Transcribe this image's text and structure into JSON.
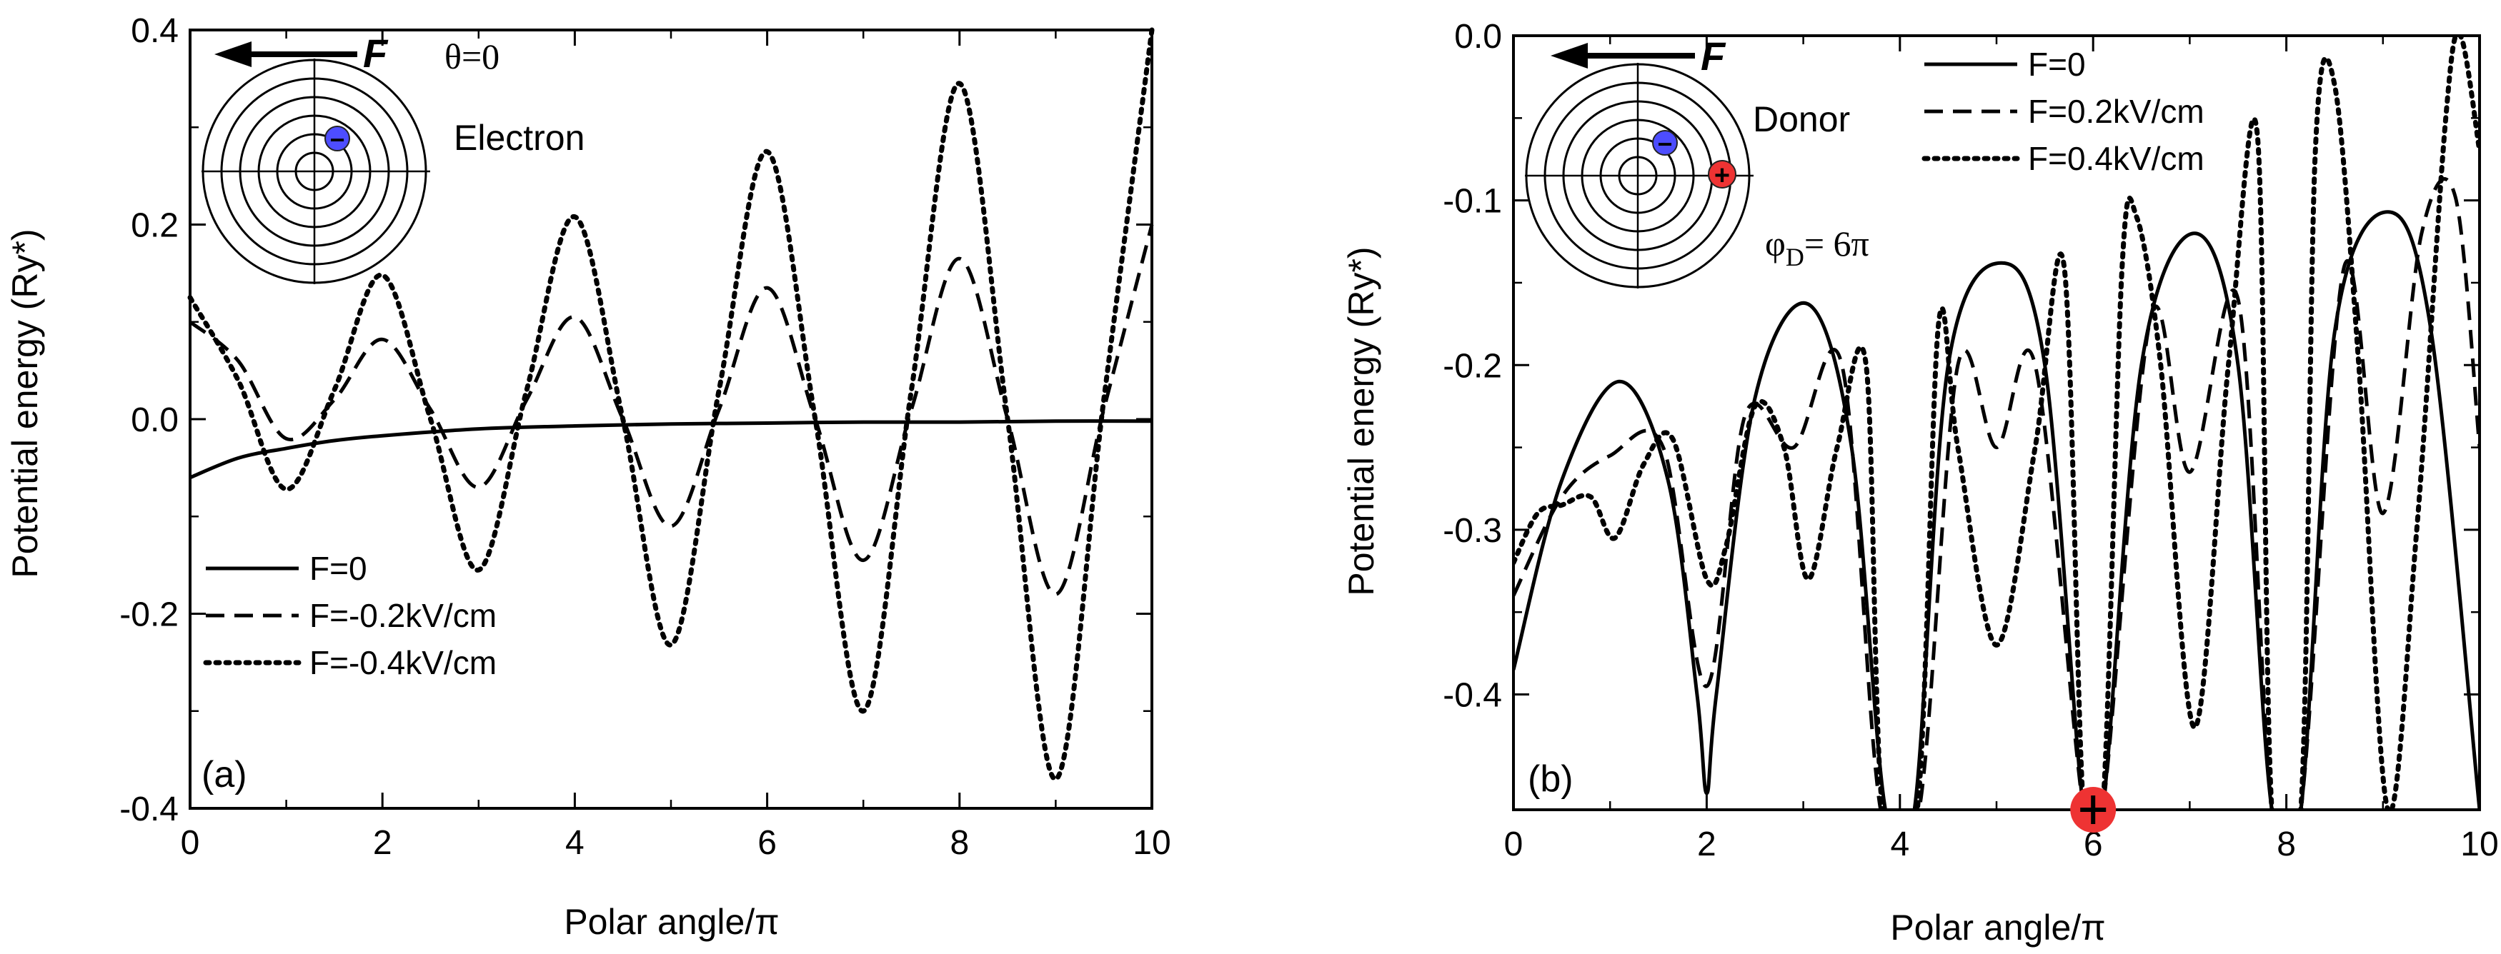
{
  "chart_data": [
    {
      "type": "line",
      "panel_label": "(a)",
      "xlabel": "Polar angle/π",
      "ylabel": "Potential energy (Ry*)",
      "xlim": [
        0,
        10
      ],
      "ylim": [
        -0.4,
        0.4
      ],
      "xticks": [
        "0",
        "2",
        "4",
        "6",
        "8",
        "10"
      ],
      "yticks": [
        "-0.4",
        "-0.2",
        "0.0",
        "0.2",
        "0.4"
      ],
      "legend_position": "bottom-left",
      "annotations": {
        "force": "F",
        "angle": "θ=0",
        "particle": "Electron",
        "charge_sign": "−"
      },
      "series": [
        {
          "name": "F=0",
          "style": "solid",
          "x": [
            0,
            0.5,
            1,
            1.5,
            2,
            3,
            4,
            5,
            6,
            7,
            8,
            9,
            10
          ],
          "y": [
            -0.06,
            -0.04,
            -0.03,
            -0.022,
            -0.017,
            -0.01,
            -0.007,
            -0.005,
            -0.004,
            -0.003,
            -0.003,
            -0.002,
            -0.002
          ]
        },
        {
          "name": "F=-0.2kV/cm",
          "style": "dashed",
          "x": [
            0,
            0.5,
            1,
            1.5,
            2,
            2.5,
            3,
            3.5,
            4,
            4.5,
            5,
            5.5,
            6,
            6.5,
            7,
            7.5,
            8,
            8.5,
            9,
            9.5,
            10
          ],
          "y": [
            0.1,
            0.06,
            -0.02,
            0.02,
            0.082,
            0.01,
            -0.07,
            0.02,
            0.105,
            0.0,
            -0.11,
            0.01,
            0.135,
            0.0,
            -0.145,
            0.01,
            0.165,
            0.0,
            -0.18,
            0.01,
            0.2
          ]
        },
        {
          "name": "F=-0.4kV/cm",
          "style": "dotted",
          "x": [
            0,
            0.5,
            1,
            1.5,
            2,
            2.5,
            3,
            3.5,
            4,
            4.5,
            5,
            5.5,
            6,
            6.5,
            7,
            7.5,
            8,
            8.5,
            9,
            9.5,
            10
          ],
          "y": [
            0.125,
            0.04,
            -0.072,
            0.03,
            0.148,
            0.0,
            -0.155,
            0.03,
            0.208,
            0.0,
            -0.232,
            0.03,
            0.275,
            0.0,
            -0.3,
            0.03,
            0.345,
            0.0,
            -0.37,
            0.02,
            0.4
          ]
        }
      ]
    },
    {
      "type": "line",
      "panel_label": "(b)",
      "xlabel": "Polar angle/π",
      "ylabel": "Potential energy (Ry*)",
      "xlim": [
        0,
        10
      ],
      "ylim": [
        -0.47,
        0.0
      ],
      "xticks": [
        "0",
        "2",
        "4",
        "6",
        "8",
        "10"
      ],
      "yticks": [
        "-0.4",
        "-0.3",
        "-0.2",
        "-0.1",
        "0.0"
      ],
      "legend_position": "top-center",
      "annotations": {
        "force": "F",
        "particle": "Donor",
        "donor_angle": "φ",
        "donor_angle_sub": "D",
        "donor_angle_value": "= 6π",
        "charge_sign": "−",
        "donor_sign": "+",
        "donor_marker_x": 6
      },
      "series": [
        {
          "name": "F=0",
          "style": "solid",
          "x": [
            0,
            0.5,
            1.1,
            1.6,
            1.9,
            2.0,
            2.1,
            2.5,
            3.05,
            3.5,
            3.85,
            4.15,
            4.5,
            5.05,
            5.5,
            5.9,
            6.1,
            6.5,
            7.05,
            7.5,
            7.85,
            8.15,
            8.5,
            9.05,
            9.5,
            10
          ],
          "y": [
            -0.385,
            -0.27,
            -0.21,
            -0.27,
            -0.4,
            -0.46,
            -0.4,
            -0.22,
            -0.163,
            -0.25,
            -0.47,
            -0.47,
            -0.2,
            -0.138,
            -0.2,
            -0.47,
            -0.47,
            -0.2,
            -0.12,
            -0.2,
            -0.47,
            -0.47,
            -0.18,
            -0.107,
            -0.18,
            -0.47
          ]
        },
        {
          "name": "F=0.2kV/cm",
          "style": "dashed",
          "x": [
            0,
            0.5,
            1.0,
            1.55,
            2.0,
            2.4,
            2.9,
            3.4,
            3.8,
            4.2,
            4.6,
            5.0,
            5.4,
            5.9,
            6.1,
            6.6,
            7.0,
            7.5,
            7.85,
            8.15,
            8.6,
            9.0,
            9.4,
            9.75,
            10
          ],
          "y": [
            -0.34,
            -0.28,
            -0.255,
            -0.25,
            -0.395,
            -0.23,
            -0.25,
            -0.2,
            -0.47,
            -0.47,
            -0.2,
            -0.25,
            -0.2,
            -0.47,
            -0.47,
            -0.17,
            -0.265,
            -0.16,
            -0.47,
            -0.47,
            -0.14,
            -0.29,
            -0.12,
            -0.098,
            -0.25
          ]
        },
        {
          "name": "F=0.4kV/cm",
          "style": "dotted",
          "x": [
            0,
            0.25,
            0.5,
            0.8,
            1.05,
            1.35,
            1.65,
            2.0,
            2.2,
            2.5,
            2.8,
            3.05,
            3.35,
            3.65,
            3.82,
            4.18,
            4.4,
            4.6,
            5.0,
            5.4,
            5.7,
            5.9,
            6.1,
            6.3,
            6.45,
            6.7,
            7.05,
            7.4,
            7.7,
            7.85,
            8.15,
            8.3,
            8.5,
            8.75,
            9.05,
            9.35,
            9.65,
            9.8,
            10
          ],
          "y": [
            -0.32,
            -0.29,
            -0.285,
            -0.28,
            -0.305,
            -0.26,
            -0.245,
            -0.33,
            -0.31,
            -0.225,
            -0.25,
            -0.33,
            -0.25,
            -0.2,
            -0.47,
            -0.47,
            -0.175,
            -0.25,
            -0.37,
            -0.25,
            -0.14,
            -0.47,
            -0.47,
            -0.14,
            -0.11,
            -0.2,
            -0.42,
            -0.2,
            -0.06,
            -0.47,
            -0.47,
            -0.07,
            -0.03,
            -0.2,
            -0.47,
            -0.3,
            -0.05,
            0.0,
            -0.07
          ]
        }
      ]
    }
  ]
}
